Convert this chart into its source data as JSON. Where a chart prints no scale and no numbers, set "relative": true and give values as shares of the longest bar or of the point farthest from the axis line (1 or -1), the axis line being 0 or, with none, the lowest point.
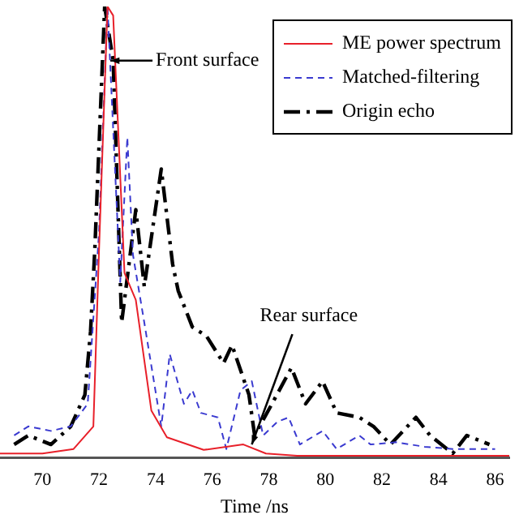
{
  "chart_data": {
    "type": "line",
    "relative": true,
    "xlabel": "Time /ns",
    "xlim": [
      68.5,
      86.5
    ],
    "xticks": [
      70,
      72,
      74,
      76,
      78,
      80,
      82,
      84,
      86
    ],
    "legend": "top right",
    "marker": "none",
    "grid": false,
    "annotations": [
      {
        "text": "Front surface",
        "x": 72.4,
        "y": 0.88
      },
      {
        "text": "Rear surface",
        "x": 77.4,
        "y": 0.03
      }
    ],
    "series": [
      {
        "name": "ME power spectrum",
        "color": "#e8202a",
        "line_style": "solid",
        "x": [
          68.5,
          69,
          70,
          71.1,
          71.8,
          72.0,
          72.3,
          72.5,
          72.9,
          73.3,
          73.85,
          74.4,
          75.7,
          77.1,
          77.9,
          79,
          86.5
        ],
        "values": [
          0.01,
          0.01,
          0.01,
          0.02,
          0.07,
          0.46,
          1.0,
          0.98,
          0.41,
          0.35,
          0.105,
          0.046,
          0.018,
          0.03,
          0.01,
          0.005,
          0.005
        ]
      },
      {
        "name": "Matched-filtering",
        "color": "#3a3ad0",
        "line_style": "dashed",
        "x": [
          69,
          69.5,
          70.3,
          71,
          71.6,
          72.0,
          72.3,
          72.75,
          73.0,
          73.2,
          73.6,
          74.2,
          74.5,
          75.0,
          75.3,
          75.6,
          76.2,
          76.5,
          77.0,
          77.4,
          77.8,
          78.3,
          78.7,
          79.1,
          79.9,
          80.4,
          81.2,
          81.6,
          82.5,
          83.5,
          84.5,
          86
        ],
        "values": [
          0.05,
          0.07,
          0.06,
          0.07,
          0.12,
          0.5,
          1.0,
          0.39,
          0.71,
          0.45,
          0.3,
          0.07,
          0.23,
          0.12,
          0.15,
          0.1,
          0.09,
          0.02,
          0.15,
          0.17,
          0.05,
          0.08,
          0.09,
          0.03,
          0.06,
          0.02,
          0.05,
          0.03,
          0.035,
          0.025,
          0.02,
          0.02
        ]
      },
      {
        "name": "Origin echo",
        "color": "#000000",
        "line_style": "dashdot",
        "x": [
          69,
          69.5,
          70.3,
          71.0,
          71.5,
          71.7,
          71.85,
          72.2,
          72.5,
          72.8,
          73.3,
          73.6,
          74.2,
          74.6,
          74.8,
          75.3,
          75.8,
          76.4,
          76.7,
          77.3,
          77.5,
          78.2,
          78.8,
          79.3,
          79.9,
          80.4,
          81.2,
          81.7,
          82.3,
          83.2,
          83.7,
          84.5,
          85.0,
          85.8
        ],
        "values": [
          0.03,
          0.05,
          0.03,
          0.07,
          0.14,
          0.28,
          0.46,
          1.0,
          0.88,
          0.3,
          0.55,
          0.38,
          0.64,
          0.43,
          0.37,
          0.29,
          0.27,
          0.21,
          0.25,
          0.14,
          0.05,
          0.13,
          0.2,
          0.12,
          0.17,
          0.1,
          0.09,
          0.07,
          0.03,
          0.09,
          0.05,
          0.01,
          0.05,
          0.03
        ]
      }
    ]
  }
}
